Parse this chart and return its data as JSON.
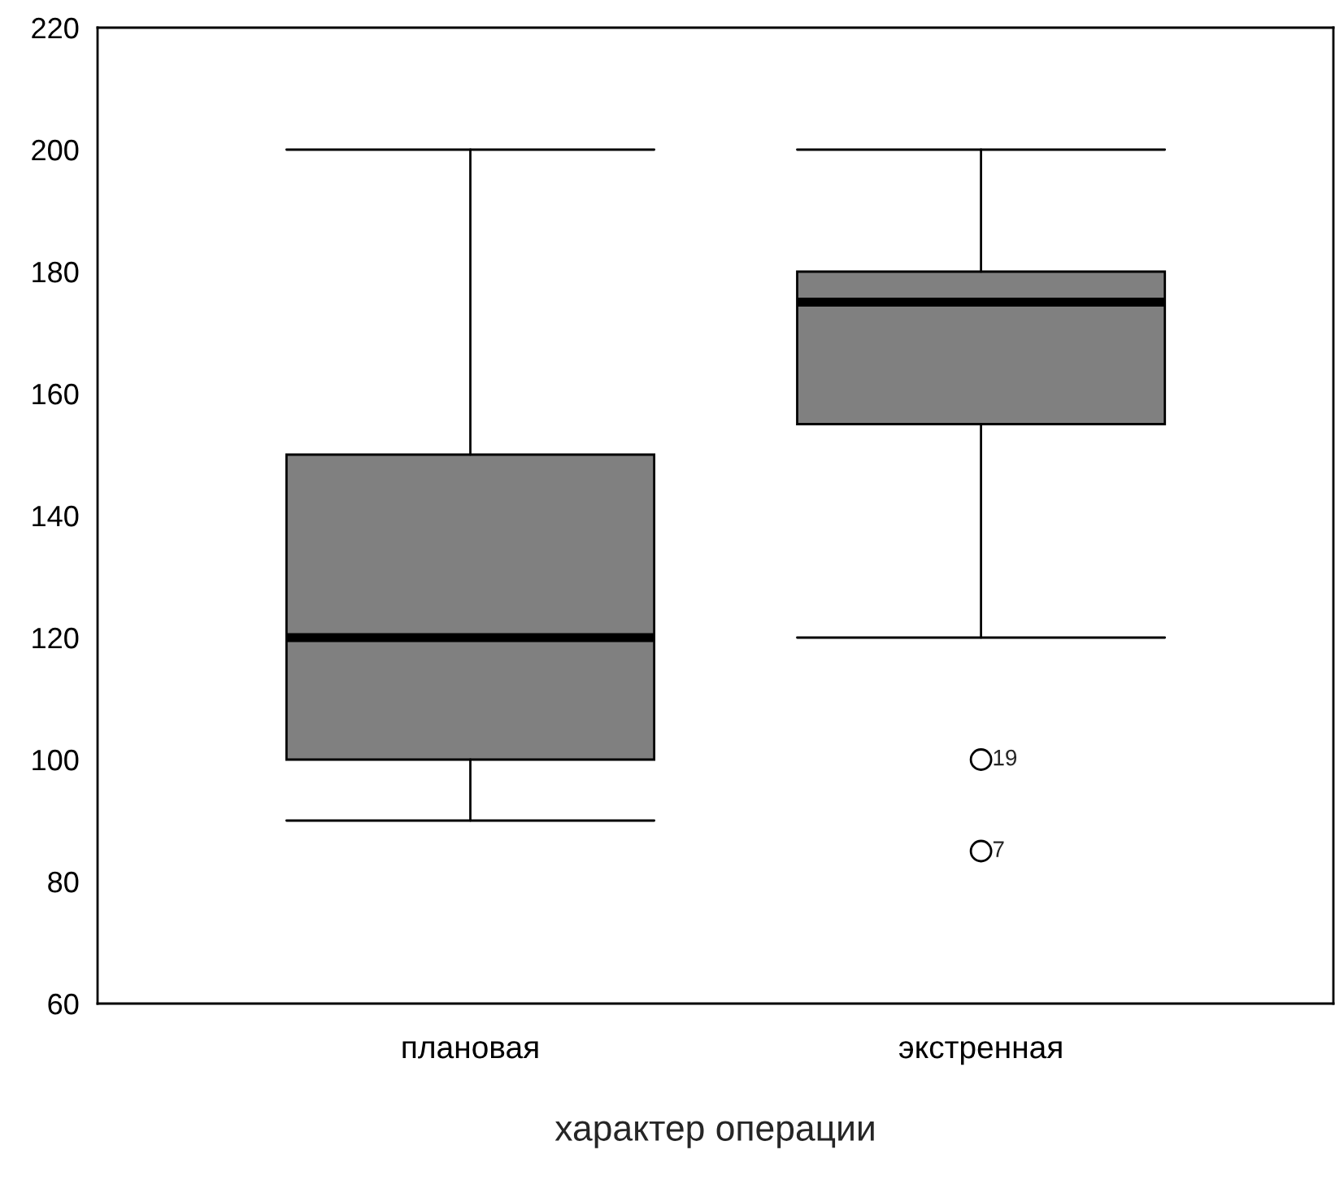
{
  "chart_data": {
    "type": "box",
    "categories": [
      "плановая",
      "экстренная"
    ],
    "boxes": [
      {
        "low": 90,
        "q1": 100,
        "median": 120,
        "q3": 150,
        "high": 200
      },
      {
        "low": 120,
        "q1": 155,
        "median": 175,
        "q3": 180,
        "high": 200,
        "outliers": [
          100,
          85
        ]
      }
    ],
    "color": "#808080",
    "xlabel": "характер операции",
    "ylim": [
      60,
      220
    ],
    "yticks": [
      60,
      80,
      100,
      120,
      140,
      160,
      180,
      200,
      220
    ],
    "annotations": [
      "19",
      "7"
    ],
    "grid": false,
    "legend": false
  }
}
